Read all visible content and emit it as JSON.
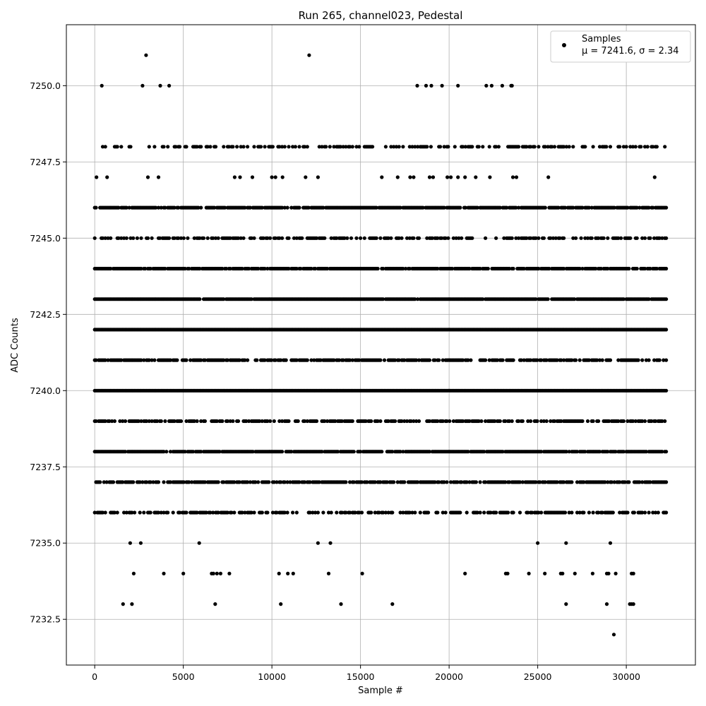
{
  "chart_data": {
    "type": "scatter",
    "title": "Run 265, channel023, Pedestal",
    "xlabel": "Sample #",
    "ylabel": "ADC Counts",
    "xlim": [
      -1600,
      33900
    ],
    "ylim": [
      7231.0,
      7252.0
    ],
    "x_ticks": [
      0,
      5000,
      10000,
      15000,
      20000,
      25000,
      30000
    ],
    "y_ticks": [
      7232.5,
      7235.0,
      7237.5,
      7240.0,
      7242.5,
      7245.0,
      7247.5,
      7250.0
    ],
    "x_tick_labels": [
      "0",
      "5000",
      "10000",
      "15000",
      "20000",
      "25000",
      "30000"
    ],
    "y_tick_labels": [
      "7232.5",
      "7235.0",
      "7237.5",
      "7240.0",
      "7242.5",
      "7245.0",
      "7247.5",
      "7250.0"
    ],
    "grid": true,
    "legend_placement": "top-right",
    "marker_color": "#000000",
    "x_max_sample": 32300,
    "series": [
      {
        "name": "Samples",
        "label_line2": "μ = 7241.6, σ = 2.34",
        "level_bands": [
          {
            "y": 7236,
            "density": 0.55
          },
          {
            "y": 7237,
            "density": 0.75
          },
          {
            "y": 7238,
            "density": 0.9
          },
          {
            "y": 7239,
            "density": 0.65
          },
          {
            "y": 7240,
            "density": 1.0
          },
          {
            "y": 7241,
            "density": 0.7
          },
          {
            "y": 7242,
            "density": 1.0
          },
          {
            "y": 7243,
            "density": 0.95
          },
          {
            "y": 7244,
            "density": 0.85
          },
          {
            "y": 7245,
            "density": 0.5
          },
          {
            "y": 7246,
            "density": 0.85
          },
          {
            "y": 7248,
            "density": 0.45
          }
        ],
        "outliers": [
          [
            400,
            7250
          ],
          [
            2700,
            7250
          ],
          [
            3700,
            7250
          ],
          [
            4200,
            7250
          ],
          [
            18200,
            7250
          ],
          [
            18700,
            7250
          ],
          [
            19000,
            7250
          ],
          [
            19600,
            7250
          ],
          [
            20500,
            7250
          ],
          [
            22100,
            7250
          ],
          [
            22400,
            7250
          ],
          [
            23000,
            7250
          ],
          [
            23500,
            7250
          ],
          [
            23550,
            7250
          ],
          [
            2900,
            7251
          ],
          [
            12100,
            7251
          ],
          [
            100,
            7247
          ],
          [
            700,
            7247
          ],
          [
            3000,
            7247
          ],
          [
            3600,
            7247
          ],
          [
            7900,
            7247
          ],
          [
            8200,
            7247
          ],
          [
            8900,
            7247
          ],
          [
            10000,
            7247
          ],
          [
            10200,
            7247
          ],
          [
            10600,
            7247
          ],
          [
            11900,
            7247
          ],
          [
            12600,
            7247
          ],
          [
            16200,
            7247
          ],
          [
            17100,
            7247
          ],
          [
            17800,
            7247
          ],
          [
            18000,
            7247
          ],
          [
            18900,
            7247
          ],
          [
            19100,
            7247
          ],
          [
            19900,
            7247
          ],
          [
            20100,
            7247
          ],
          [
            20500,
            7247
          ],
          [
            20900,
            7247
          ],
          [
            21500,
            7247
          ],
          [
            22300,
            7247
          ],
          [
            23600,
            7247
          ],
          [
            23800,
            7247
          ],
          [
            25600,
            7247
          ],
          [
            31600,
            7247
          ],
          [
            2000,
            7235
          ],
          [
            2600,
            7235
          ],
          [
            5900,
            7235
          ],
          [
            12600,
            7235
          ],
          [
            13300,
            7235
          ],
          [
            25000,
            7235
          ],
          [
            26600,
            7235
          ],
          [
            29100,
            7235
          ],
          [
            2200,
            7234
          ],
          [
            3900,
            7234
          ],
          [
            5000,
            7234
          ],
          [
            6600,
            7234
          ],
          [
            6700,
            7234
          ],
          [
            6900,
            7234
          ],
          [
            7100,
            7234
          ],
          [
            7600,
            7234
          ],
          [
            10400,
            7234
          ],
          [
            10900,
            7234
          ],
          [
            11200,
            7234
          ],
          [
            13200,
            7234
          ],
          [
            15100,
            7234
          ],
          [
            20900,
            7234
          ],
          [
            23200,
            7234
          ],
          [
            23300,
            7234
          ],
          [
            24500,
            7234
          ],
          [
            25400,
            7234
          ],
          [
            26300,
            7234
          ],
          [
            26400,
            7234
          ],
          [
            27100,
            7234
          ],
          [
            28100,
            7234
          ],
          [
            28900,
            7234
          ],
          [
            29000,
            7234
          ],
          [
            29400,
            7234
          ],
          [
            30300,
            7234
          ],
          [
            30400,
            7234
          ],
          [
            1600,
            7233
          ],
          [
            2100,
            7233
          ],
          [
            6800,
            7233
          ],
          [
            10500,
            7233
          ],
          [
            13900,
            7233
          ],
          [
            16800,
            7233
          ],
          [
            26600,
            7233
          ],
          [
            28900,
            7233
          ],
          [
            30200,
            7233
          ],
          [
            30300,
            7233
          ],
          [
            30400,
            7233
          ],
          [
            29300,
            7232
          ]
        ]
      }
    ]
  }
}
